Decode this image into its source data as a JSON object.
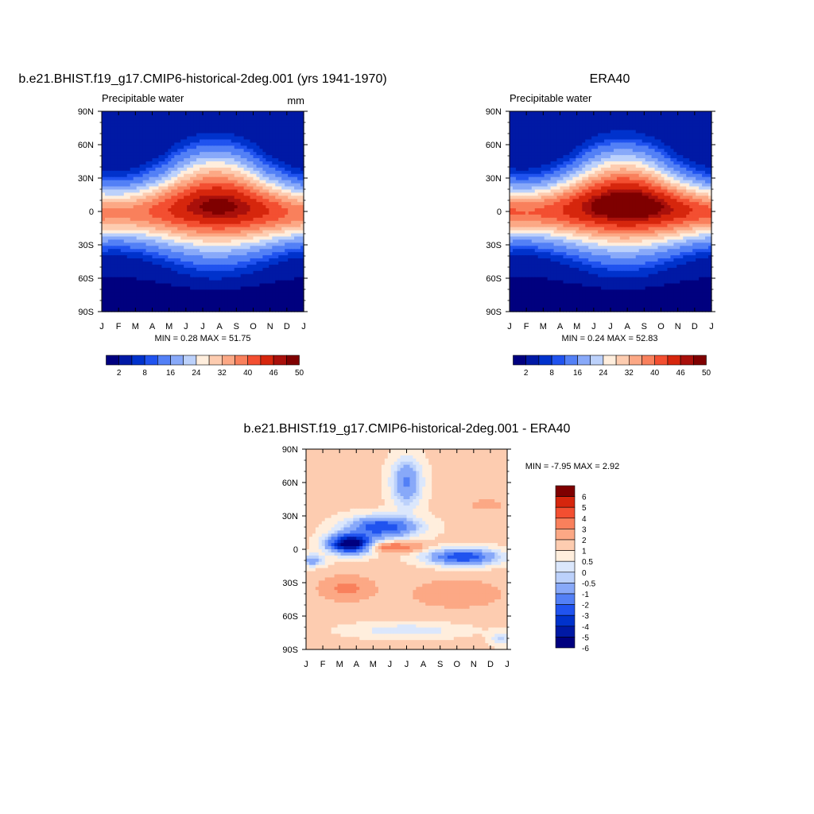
{
  "colors": {
    "abs_palette": [
      "#00007f",
      "#0019a5",
      "#0032cc",
      "#2053ef",
      "#5380f6",
      "#88a9f9",
      "#bcd1fb",
      "#ffeedd",
      "#fdccb0",
      "#fca885",
      "#f9805c",
      "#f34f31",
      "#d6260d",
      "#a9100b",
      "#7f0000"
    ],
    "diff_palette": [
      "#00007f",
      "#0019a5",
      "#0032cc",
      "#2053ef",
      "#5380f6",
      "#88a9f9",
      "#bcd1fb",
      "#dbe7fc",
      "#ffeedd",
      "#fdccb0",
      "#fca885",
      "#f9805c",
      "#f34f31",
      "#d6260d",
      "#7f0000"
    ]
  },
  "chart_data": [
    {
      "type": "heatmap",
      "title": "b.e21.BHIST.f19_g17.CMIP6-historical-2deg.001 (yrs 1941-1970)",
      "left_label": "Precipitable water",
      "right_label": "mm",
      "min_max_text": "MIN =   0.28 MAX =  51.75",
      "x_ticks": [
        "J",
        "F",
        "M",
        "A",
        "M",
        "J",
        "J",
        "A",
        "S",
        "O",
        "N",
        "D",
        "J"
      ],
      "y_ticks": [
        "90N",
        "60N",
        "30N",
        "0",
        "30S",
        "60S",
        "90S"
      ],
      "ylim": [
        -90,
        90
      ],
      "min": 0.28,
      "max": 51.75,
      "colorbar": {
        "levels": [
          2,
          4,
          6,
          8,
          12,
          16,
          20,
          24,
          28,
          32,
          36,
          40,
          44,
          46,
          50
        ],
        "labels": [
          "2",
          "8",
          "16",
          "24",
          "32",
          "40",
          "46",
          "50"
        ],
        "orientation": "horizontal"
      }
    },
    {
      "type": "heatmap",
      "title": "ERA40",
      "left_label": "Precipitable water",
      "right_label": "",
      "min_max_text": "MIN =   0.24 MAX =  52.83",
      "x_ticks": [
        "J",
        "F",
        "M",
        "A",
        "M",
        "J",
        "J",
        "A",
        "S",
        "O",
        "N",
        "D",
        "J"
      ],
      "y_ticks": [
        "90N",
        "60N",
        "30N",
        "0",
        "30S",
        "60S",
        "90S"
      ],
      "ylim": [
        -90,
        90
      ],
      "min": 0.24,
      "max": 52.83,
      "colorbar": {
        "levels": [
          2,
          4,
          6,
          8,
          12,
          16,
          20,
          24,
          28,
          32,
          36,
          40,
          44,
          46,
          50
        ],
        "labels": [
          "2",
          "8",
          "16",
          "24",
          "32",
          "40",
          "46",
          "50"
        ],
        "orientation": "horizontal"
      }
    },
    {
      "type": "heatmap",
      "title": "b.e21.BHIST.f19_g17.CMIP6-historical-2deg.001 - ERA40",
      "min_max_text": "MIN =  -7.95 MAX =   2.92",
      "x_ticks": [
        "J",
        "F",
        "M",
        "A",
        "M",
        "J",
        "J",
        "A",
        "S",
        "O",
        "N",
        "D",
        "J"
      ],
      "y_ticks": [
        "90N",
        "60N",
        "30N",
        "0",
        "30S",
        "60S",
        "90S"
      ],
      "ylim": [
        -90,
        90
      ],
      "min": -7.95,
      "max": 2.92,
      "colorbar": {
        "levels": [
          -6,
          -5,
          -4,
          -3,
          -2,
          -1,
          -0.5,
          0,
          0.5,
          1,
          2,
          3,
          4,
          5,
          6
        ],
        "labels": [
          "6",
          "5",
          "4",
          "3",
          "2",
          "1",
          "0.5",
          "0",
          "-0.5",
          "-1",
          "-2",
          "-3",
          "-4",
          "-5",
          "-6"
        ],
        "orientation": "vertical"
      }
    }
  ]
}
